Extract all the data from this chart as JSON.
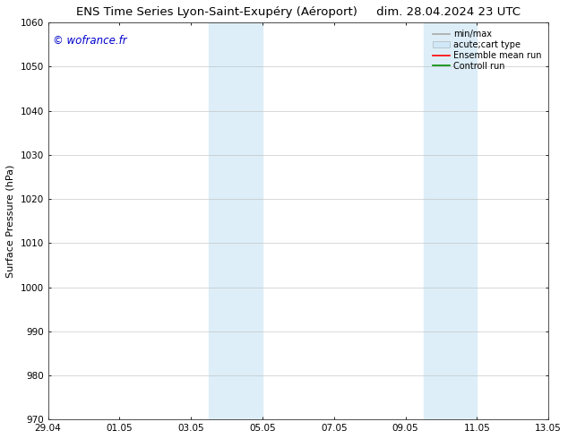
{
  "title": "ENS Time Series Lyon-Saint-Exupéry (Aéroport)     dim. 28.04.2024 23 UTC",
  "ylabel": "Surface Pressure (hPa)",
  "watermark": "© wofrance.fr",
  "watermark_color": "#0000cc",
  "ylim": [
    970,
    1060
  ],
  "yticks": [
    970,
    980,
    990,
    1000,
    1010,
    1020,
    1030,
    1040,
    1050,
    1060
  ],
  "xtick_labels": [
    "29.04",
    "01.05",
    "03.05",
    "05.05",
    "07.05",
    "09.05",
    "11.05",
    "13.05"
  ],
  "xtick_positions": [
    0,
    2,
    4,
    6,
    8,
    10,
    12,
    14
  ],
  "shade_regions": [
    {
      "x_start": 4.5,
      "x_end": 6.0
    },
    {
      "x_start": 10.5,
      "x_end": 12.0
    }
  ],
  "shade_color": "#ddeef8",
  "background_color": "#ffffff",
  "grid_color": "#bbbbbb",
  "legend_entries": [
    {
      "label": "min/max",
      "color": "#aaaaaa",
      "lw": 1.2,
      "type": "line"
    },
    {
      "label": "acute;cart type",
      "color": "#d0e8f8",
      "lw": 6,
      "type": "band"
    },
    {
      "label": "Ensemble mean run",
      "color": "#ff0000",
      "lw": 1.2,
      "type": "line"
    },
    {
      "label": "Controll run",
      "color": "#008800",
      "lw": 1.2,
      "type": "line"
    }
  ],
  "title_fontsize": 9.5,
  "tick_fontsize": 7.5,
  "ylabel_fontsize": 8,
  "watermark_fontsize": 8.5,
  "legend_fontsize": 7
}
